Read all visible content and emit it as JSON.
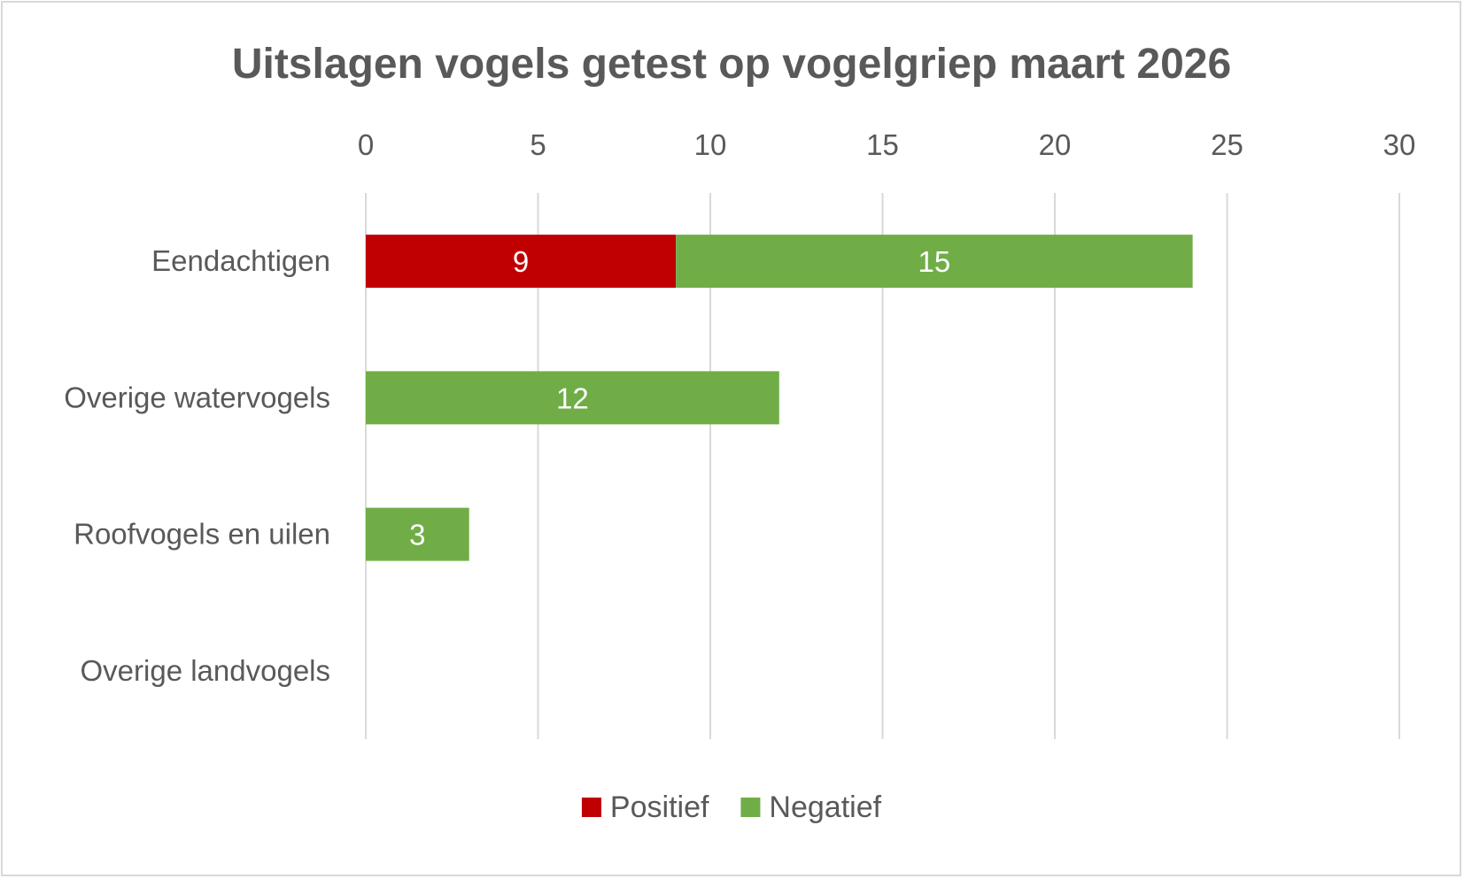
{
  "chart_data": {
    "type": "bar",
    "orientation": "horizontal",
    "stacked": true,
    "title": "Uitslagen vogels getest op vogelgriep maart 2026",
    "categories": [
      "Eendachtigen",
      "Overige watervogels",
      "Roofvogels en uilen",
      "Overige landvogels"
    ],
    "series": [
      {
        "name": "Positief",
        "color": "#c00000",
        "values": [
          9,
          0,
          0,
          0
        ]
      },
      {
        "name": "Negatief",
        "color": "#70ad47",
        "values": [
          15,
          12,
          3,
          0
        ]
      }
    ],
    "xlim": [
      0,
      30
    ],
    "x_ticks": [
      0,
      5,
      10,
      15,
      20,
      25,
      30
    ],
    "x_axis_position": "top",
    "grid": true,
    "data_labels": true,
    "legend": "bottom"
  }
}
